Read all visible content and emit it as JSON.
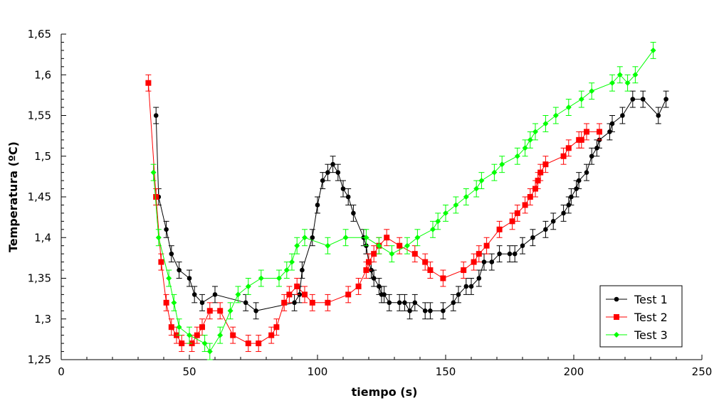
{
  "chart_data": {
    "type": "line",
    "title": "",
    "xlabel": "tiempo (s)",
    "ylabel": "Temperatura (ºC)",
    "xlim": [
      0,
      250
    ],
    "ylim": [
      1.25,
      1.65
    ],
    "x_ticks": [
      0,
      50,
      100,
      150,
      200,
      250
    ],
    "x_tick_labels": [
      "0",
      "50",
      "100",
      "150",
      "200",
      "250"
    ],
    "y_ticks": [
      1.25,
      1.3,
      1.35,
      1.4,
      1.45,
      1.5,
      1.55,
      1.6,
      1.65
    ],
    "y_tick_labels": [
      "1,25",
      "1,3",
      "1,35",
      "1,4",
      "1,45",
      "1,5",
      "1,55",
      "1,6",
      "1,65"
    ],
    "grid": false,
    "error_bar": 0.01,
    "legend_position": "bottom-right",
    "series": [
      {
        "name": "Test 1",
        "color": "#000000",
        "marker": "circle",
        "x": [
          37,
          38,
          41,
          43,
          46,
          50,
          52,
          55,
          60,
          72,
          76,
          91,
          93,
          94,
          98,
          100,
          102,
          104,
          106,
          108,
          110,
          112,
          114,
          118,
          119,
          120,
          121,
          122,
          124,
          125,
          126,
          128,
          132,
          134,
          136,
          138,
          142,
          144,
          149,
          153,
          155,
          158,
          160,
          163,
          165,
          168,
          171,
          175,
          177,
          180,
          184,
          189,
          192,
          196,
          198,
          199,
          201,
          202,
          205,
          207,
          209,
          210,
          214,
          215,
          219,
          223,
          227,
          233,
          236
        ],
        "y": [
          1.55,
          1.45,
          1.41,
          1.38,
          1.36,
          1.35,
          1.33,
          1.32,
          1.33,
          1.32,
          1.31,
          1.32,
          1.33,
          1.36,
          1.4,
          1.44,
          1.47,
          1.48,
          1.49,
          1.48,
          1.46,
          1.45,
          1.43,
          1.4,
          1.39,
          1.37,
          1.36,
          1.35,
          1.34,
          1.33,
          1.33,
          1.32,
          1.32,
          1.32,
          1.31,
          1.32,
          1.31,
          1.31,
          1.31,
          1.32,
          1.33,
          1.34,
          1.34,
          1.35,
          1.37,
          1.37,
          1.38,
          1.38,
          1.38,
          1.39,
          1.4,
          1.41,
          1.42,
          1.43,
          1.44,
          1.45,
          1.46,
          1.47,
          1.48,
          1.5,
          1.51,
          1.52,
          1.53,
          1.54,
          1.55,
          1.57,
          1.57,
          1.55,
          1.57
        ]
      },
      {
        "name": "Test 2",
        "color": "#ff0000",
        "marker": "square",
        "x": [
          34,
          37,
          39,
          41,
          43,
          45,
          47,
          51,
          53,
          55,
          58,
          62,
          67,
          73,
          77,
          82,
          84,
          87,
          89,
          92,
          95,
          98,
          104,
          112,
          116,
          119,
          120,
          122,
          124,
          127,
          132,
          138,
          142,
          144,
          149,
          157,
          161,
          163,
          166,
          171,
          176,
          178,
          181,
          183,
          185,
          186,
          187,
          189,
          196,
          198,
          202,
          203,
          205,
          210
        ],
        "y": [
          1.59,
          1.45,
          1.37,
          1.32,
          1.29,
          1.28,
          1.27,
          1.27,
          1.28,
          1.29,
          1.31,
          1.31,
          1.28,
          1.27,
          1.27,
          1.28,
          1.29,
          1.32,
          1.33,
          1.34,
          1.33,
          1.32,
          1.32,
          1.33,
          1.34,
          1.36,
          1.37,
          1.38,
          1.39,
          1.4,
          1.39,
          1.38,
          1.37,
          1.36,
          1.35,
          1.36,
          1.37,
          1.38,
          1.39,
          1.41,
          1.42,
          1.43,
          1.44,
          1.45,
          1.46,
          1.47,
          1.48,
          1.49,
          1.5,
          1.51,
          1.52,
          1.52,
          1.53,
          1.53
        ]
      },
      {
        "name": "Test 3",
        "color": "#00ff00",
        "marker": "diamond",
        "x": [
          36,
          38,
          42,
          44,
          46,
          50,
          56,
          58,
          62,
          66,
          69,
          73,
          78,
          85,
          88,
          90,
          92,
          95,
          104,
          111,
          119,
          124,
          129,
          135,
          139,
          145,
          147,
          150,
          154,
          158,
          162,
          164,
          169,
          172,
          178,
          181,
          183,
          185,
          189,
          193,
          198,
          203,
          207,
          215,
          218,
          221,
          224,
          231
        ],
        "y": [
          1.48,
          1.4,
          1.35,
          1.32,
          1.29,
          1.28,
          1.27,
          1.26,
          1.28,
          1.31,
          1.33,
          1.34,
          1.35,
          1.35,
          1.36,
          1.37,
          1.39,
          1.4,
          1.39,
          1.4,
          1.4,
          1.39,
          1.38,
          1.39,
          1.4,
          1.41,
          1.42,
          1.43,
          1.44,
          1.45,
          1.46,
          1.47,
          1.48,
          1.49,
          1.5,
          1.51,
          1.52,
          1.53,
          1.54,
          1.55,
          1.56,
          1.57,
          1.58,
          1.59,
          1.6,
          1.59,
          1.6,
          1.63
        ]
      }
    ]
  }
}
